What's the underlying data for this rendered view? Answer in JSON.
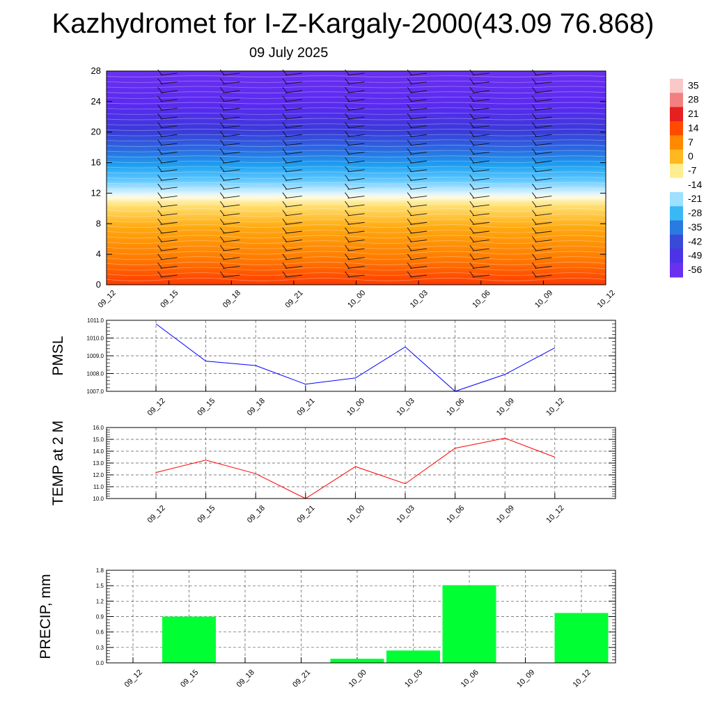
{
  "header": {
    "title": "Kazhydromet for I-Z-Kargaly-2000(43.09 76.868)",
    "date": "09 July 2025"
  },
  "chart_data": [
    {
      "type": "heatmap",
      "name": "temperature-cross-section",
      "y_ticks": [
        "0",
        "4",
        "8",
        "12",
        "16",
        "20",
        "24",
        "28"
      ],
      "ylim": [
        0,
        28
      ],
      "x_ticks": [
        "09_12",
        "09_15",
        "09_18",
        "09_21",
        "10_00",
        "10_03",
        "10_06",
        "10_09",
        "10_12"
      ],
      "colorbar": {
        "labels": [
          "35",
          "28",
          "21",
          "14",
          "7",
          "0",
          "-7",
          "-14",
          "-21",
          "-28",
          "-35",
          "-42",
          "-49",
          "-56"
        ],
        "range": [
          -60,
          38
        ]
      },
      "wind_barbs": true
    },
    {
      "type": "line",
      "name": "pmsl",
      "ylabel": "PMSL",
      "categories": [
        "09_12",
        "09_15",
        "09_18",
        "09_21",
        "10_00",
        "10_03",
        "10_06",
        "10_09",
        "10_12"
      ],
      "values": [
        1010.8,
        1008.7,
        1008.45,
        1007.4,
        1007.75,
        1009.5,
        1007.0,
        1007.95,
        1009.45
      ],
      "y_ticks": [
        "1007.0",
        "1008.0",
        "1009.0",
        "1010.0",
        "1011.0"
      ],
      "ylim": [
        1007.0,
        1011.0
      ],
      "color": "#0000ff",
      "grid": true
    },
    {
      "type": "line",
      "name": "temp2m",
      "ylabel": "TEMP at 2 M",
      "categories": [
        "09_12",
        "09_15",
        "09_18",
        "09_21",
        "10_00",
        "10_03",
        "10_06",
        "10_09",
        "10_12"
      ],
      "values": [
        12.2,
        13.25,
        12.1,
        10.0,
        12.7,
        11.25,
        14.25,
        15.1,
        13.5
      ],
      "y_ticks": [
        "10.0",
        "11.0",
        "12.0",
        "13.0",
        "14.0",
        "15.0",
        "16.0"
      ],
      "ylim": [
        10.0,
        16.0
      ],
      "color": "#ff0000",
      "grid": true
    },
    {
      "type": "bar",
      "name": "precip",
      "ylabel": "PRECIP, mm",
      "categories": [
        "09_12",
        "09_15",
        "09_18",
        "09_21",
        "10_00",
        "10_03",
        "10_06",
        "10_09",
        "10_12"
      ],
      "values": [
        0,
        0.9,
        0,
        0,
        0.08,
        0.24,
        1.51,
        0,
        0.97
      ],
      "y_ticks": [
        "0.0",
        "0.3",
        "0.6",
        "0.9",
        "1.2",
        "1.5",
        "1.8"
      ],
      "ylim": [
        0,
        1.8
      ],
      "color": "#00ff33",
      "grid": true
    }
  ]
}
